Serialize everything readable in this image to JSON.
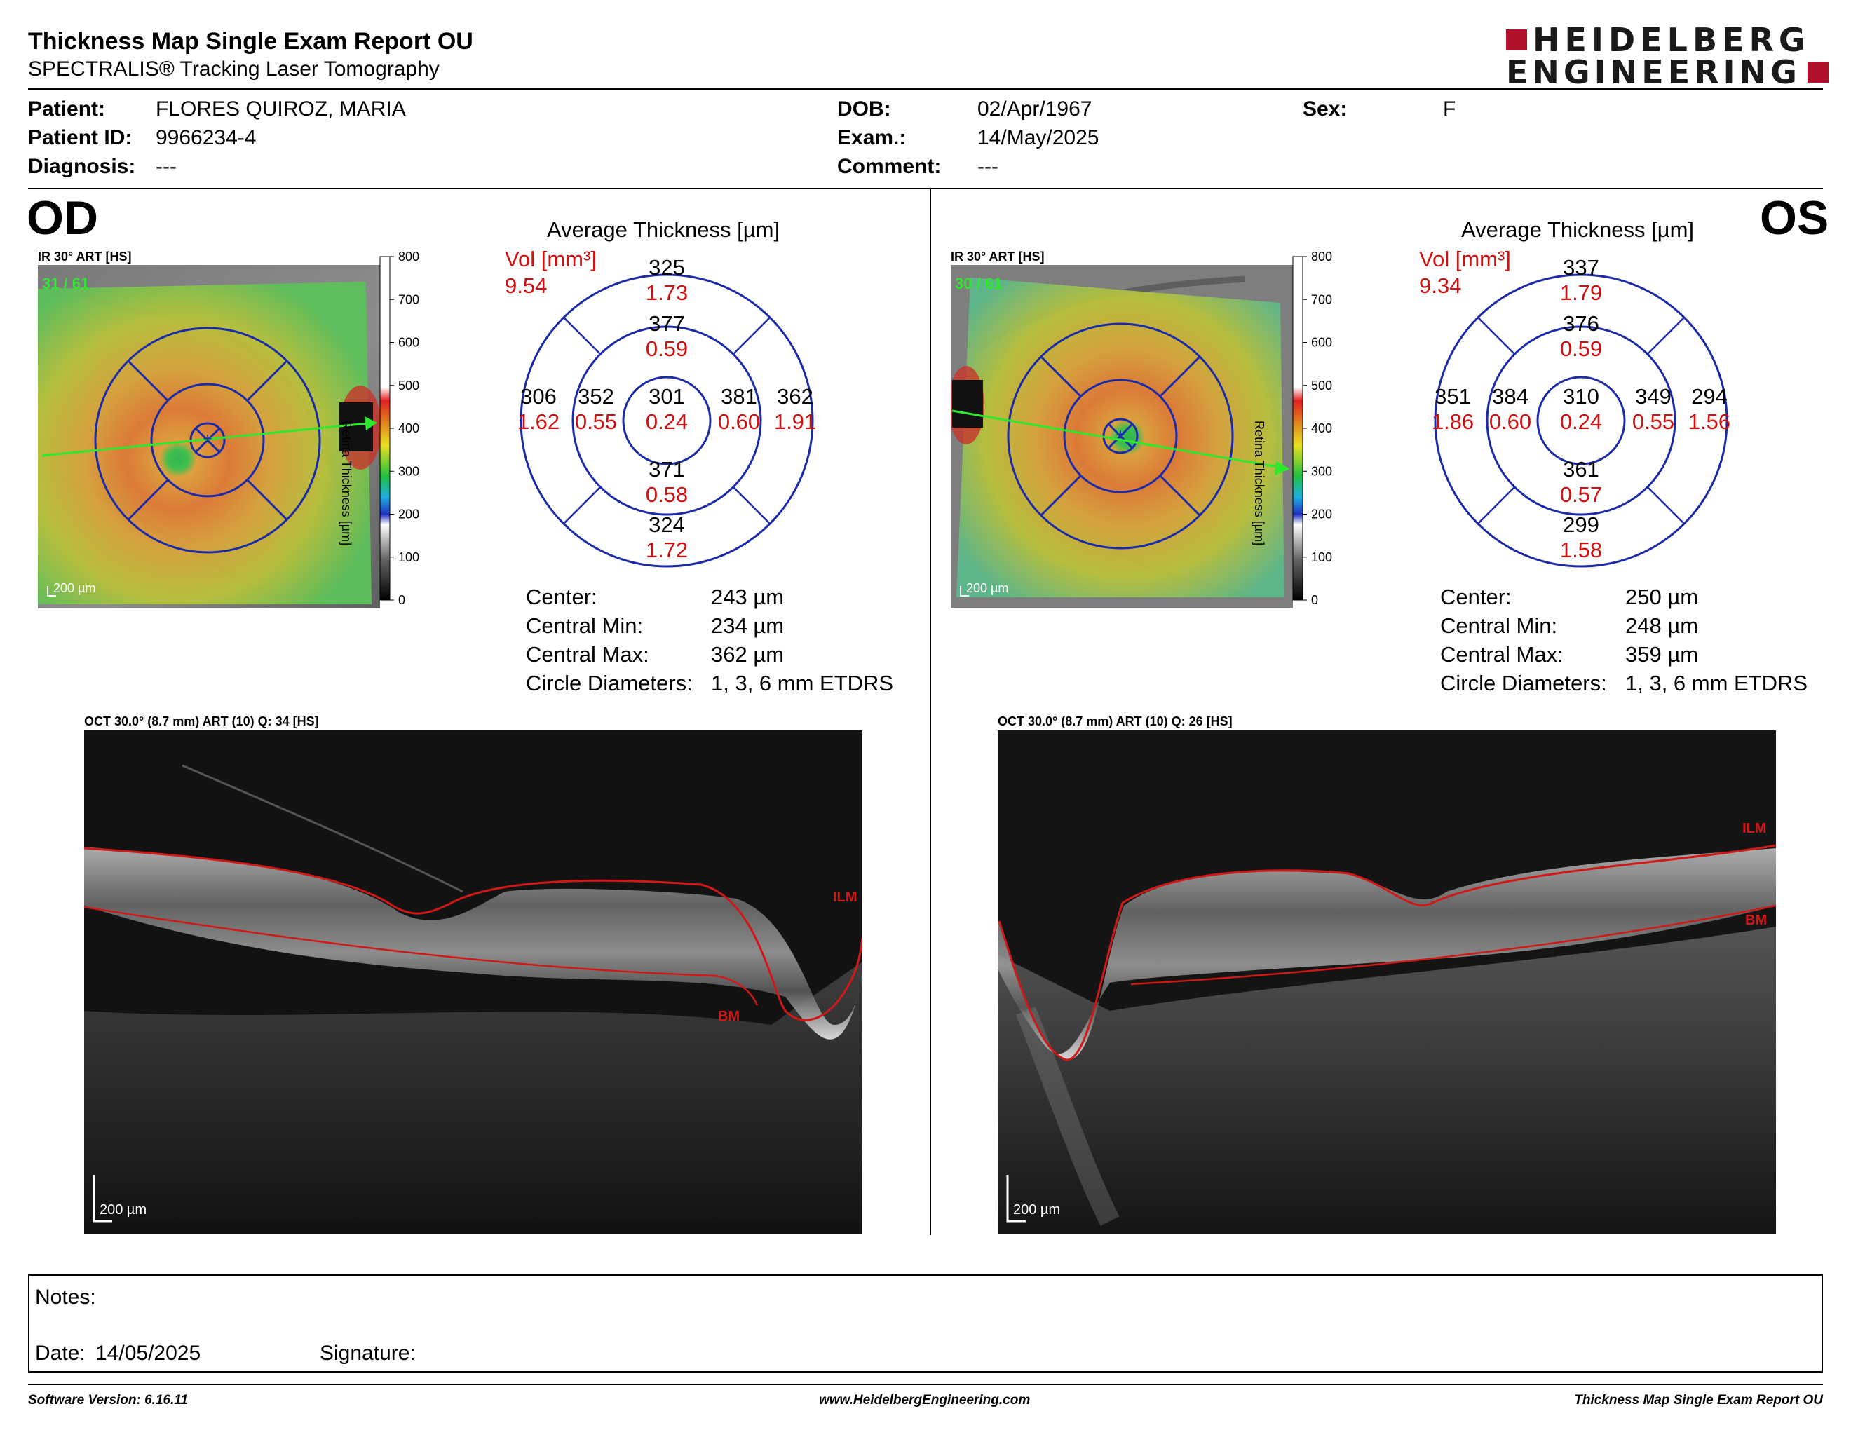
{
  "report": {
    "title": "Thickness Map Single Exam Report OU",
    "subtitle": "SPECTRALIS® Tracking Laser Tomography",
    "logo_line1": "HEIDELBERG",
    "logo_line2": "ENGINEERING",
    "logo_color": "#b0102a"
  },
  "patient": {
    "patient_label": "Patient:",
    "patient_value": "FLORES QUIROZ, MARIA",
    "id_label": "Patient ID:",
    "id_value": "9966234-4",
    "diagnosis_label": "Diagnosis:",
    "diagnosis_value": "---",
    "dob_label": "DOB:",
    "dob_value": "02/Apr/1967",
    "exam_label": "Exam.:",
    "exam_value": "14/May/2025",
    "comment_label": "Comment:",
    "comment_value": "---",
    "sex_label": "Sex:",
    "sex_value": "F"
  },
  "od": {
    "eye": "OD",
    "ir_label": "IR 30° ART [HS]",
    "frames": "31 / 61",
    "scale_bar": "200 µm",
    "avg_title": "Average Thickness [µm]",
    "vol_label": "Vol [mm³]",
    "vol_total": "9.54",
    "grid": {
      "center_t": "301",
      "center_v": "0.24",
      "inner_sup_t": "377",
      "inner_sup_v": "0.59",
      "inner_inf_t": "371",
      "inner_inf_v": "0.58",
      "inner_left_t": "352",
      "inner_left_v": "0.55",
      "inner_right_t": "381",
      "inner_right_v": "0.60",
      "outer_sup_t": "325",
      "outer_sup_v": "1.73",
      "outer_inf_t": "324",
      "outer_inf_v": "1.72",
      "outer_left_t": "306",
      "outer_left_v": "1.62",
      "outer_right_t": "362",
      "outer_right_v": "1.91"
    },
    "stats": {
      "center_l": "Center:",
      "center_v": "243 µm",
      "min_l": "Central Min:",
      "min_v": "234 µm",
      "max_l": "Central Max:",
      "max_v": "362 µm",
      "diam_l": "Circle Diameters:",
      "diam_v": "1, 3, 6 mm ETDRS"
    },
    "oct_label": "OCT 30.0° (8.7 mm) ART (10) Q: 34 [HS]",
    "oct_scale": "200 µm",
    "ilm": "ILM",
    "bm": "BM"
  },
  "os": {
    "eye": "OS",
    "ir_label": "IR 30° ART [HS]",
    "frames": "30 / 61",
    "scale_bar": "200 µm",
    "avg_title": "Average Thickness [µm]",
    "vol_label": "Vol [mm³]",
    "vol_total": "9.34",
    "grid": {
      "center_t": "310",
      "center_v": "0.24",
      "inner_sup_t": "376",
      "inner_sup_v": "0.59",
      "inner_inf_t": "361",
      "inner_inf_v": "0.57",
      "inner_left_t": "384",
      "inner_left_v": "0.60",
      "inner_right_t": "349",
      "inner_right_v": "0.55",
      "outer_sup_t": "337",
      "outer_sup_v": "1.79",
      "outer_inf_t": "299",
      "outer_inf_v": "1.58",
      "outer_left_t": "351",
      "outer_left_v": "1.86",
      "outer_right_t": "294",
      "outer_right_v": "1.56"
    },
    "stats": {
      "center_l": "Center:",
      "center_v": "250 µm",
      "min_l": "Central Min:",
      "min_v": "248 µm",
      "max_l": "Central Max:",
      "max_v": "359 µm",
      "diam_l": "Circle Diameters:",
      "diam_v": "1, 3, 6 mm ETDRS"
    },
    "oct_label": "OCT 30.0° (8.7 mm) ART (10) Q: 26 [HS]",
    "oct_scale": "200 µm",
    "ilm": "ILM",
    "bm": "BM"
  },
  "colorbar": {
    "ticks": [
      "800",
      "700",
      "600",
      "500",
      "400",
      "300",
      "200",
      "100",
      "0"
    ],
    "label": "Retina Thickness [µm]"
  },
  "notes": {
    "notes_label": "Notes:",
    "date_label": "Date:",
    "date_value": "14/05/2025",
    "signature_label": "Signature:"
  },
  "footer": {
    "software": "Software Version: 6.16.11",
    "website": "www.HeidelbergEngineering.com",
    "report_name": "Thickness Map Single Exam Report OU"
  }
}
